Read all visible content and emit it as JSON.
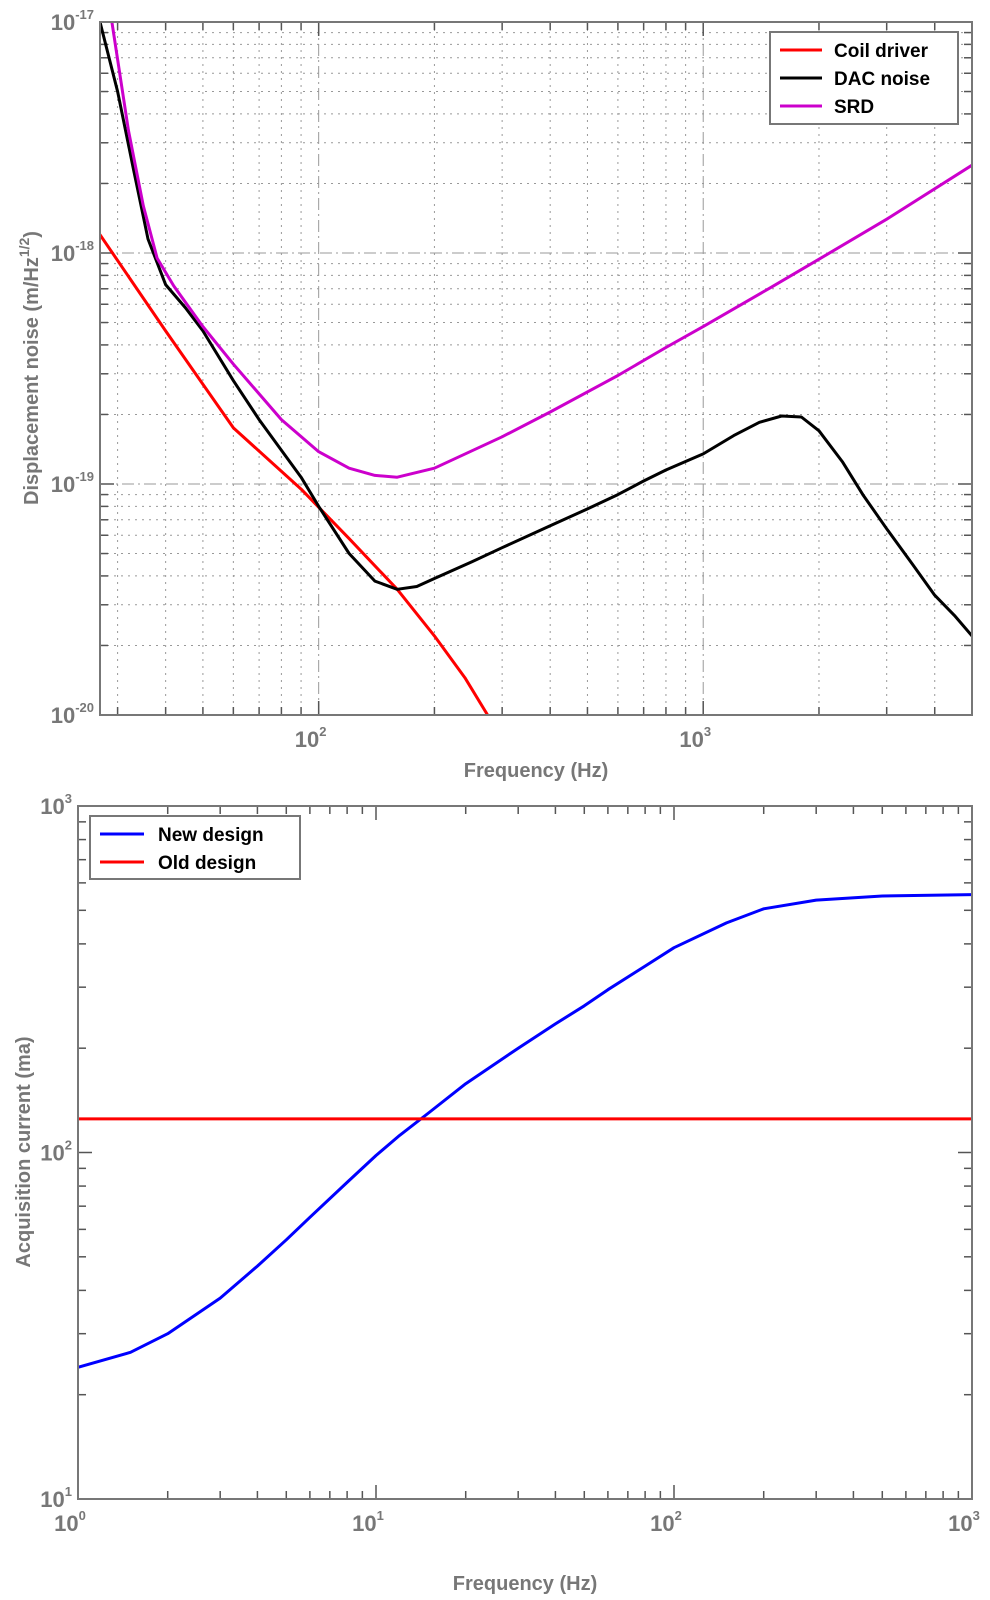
{
  "chart_data": [
    {
      "type": "line",
      "xlabel": "Frequency (Hz)",
      "ylabel": "Displacement noise (m/Hz",
      "ylabel_sup": "1/2",
      "ylabel_tail": ")",
      "xscale": "log",
      "yscale": "log",
      "xlim": [
        27,
        5000
      ],
      "ylim": [
        1e-20,
        1e-17
      ],
      "grid": true,
      "legend_position": "top-right",
      "x_ticks": [
        {
          "base": "10",
          "exp": "2",
          "value": 100
        },
        {
          "base": "10",
          "exp": "3",
          "value": 1000
        }
      ],
      "y_ticks": [
        {
          "base": "10",
          "exp": "-20",
          "value": 1e-20
        },
        {
          "base": "10",
          "exp": "-19",
          "value": 1e-19
        },
        {
          "base": "10",
          "exp": "-18",
          "value": 1e-18
        },
        {
          "base": "10",
          "exp": "-17",
          "value": 1e-17
        }
      ],
      "series": [
        {
          "name": "Coil driver",
          "color": "#ff0000",
          "x": [
            27,
            40,
            60,
            90,
            120,
            160,
            200,
            240,
            275
          ],
          "y": [
            1.2e-18,
            4.6e-19,
            1.75e-19,
            9.5e-20,
            5.8e-20,
            3.5e-20,
            2.2e-20,
            1.45e-20,
            1e-20
          ]
        },
        {
          "name": "DAC noise",
          "color": "#000000",
          "x": [
            27,
            30,
            33,
            36,
            40,
            45,
            50,
            60,
            70,
            80,
            90,
            100,
            120,
            140,
            160,
            180,
            200,
            250,
            300,
            400,
            500,
            600,
            700,
            800,
            1000,
            1200,
            1400,
            1600,
            1800,
            2000,
            2300,
            2600,
            3000,
            3500,
            4000,
            4500,
            5000
          ],
          "y": [
            1e-17,
            5e-18,
            2.3e-18,
            1.15e-18,
            7.3e-19,
            5.8e-19,
            4.6e-19,
            2.8e-19,
            1.9e-19,
            1.4e-19,
            1.07e-19,
            8e-20,
            5e-20,
            3.8e-20,
            3.5e-20,
            3.6e-20,
            3.9e-20,
            4.6e-20,
            5.3e-20,
            6.6e-20,
            7.8e-20,
            9e-20,
            1.03e-19,
            1.15e-19,
            1.35e-19,
            1.62e-19,
            1.85e-19,
            1.97e-19,
            1.95e-19,
            1.7e-19,
            1.25e-19,
            9e-20,
            6.4e-20,
            4.5e-20,
            3.3e-20,
            2.7e-20,
            2.2e-20
          ]
        },
        {
          "name": "SRD",
          "color": "#cc00cc",
          "x": [
            29,
            32,
            35,
            38,
            42,
            50,
            60,
            80,
            100,
            120,
            140,
            160,
            200,
            300,
            400,
            600,
            800,
            1000,
            1500,
            2000,
            3000,
            5000
          ],
          "y": [
            1e-17,
            3.4e-18,
            1.6e-18,
            9.5e-19,
            7.2e-19,
            4.8e-19,
            3.3e-19,
            1.9e-19,
            1.38e-19,
            1.17e-19,
            1.09e-19,
            1.07e-19,
            1.17e-19,
            1.6e-19,
            2.05e-19,
            2.95e-19,
            3.9e-19,
            4.8e-19,
            7.1e-19,
            9.4e-19,
            1.4e-18,
            2.4e-18
          ]
        }
      ]
    },
    {
      "type": "line",
      "xlabel": "Frequency (Hz)",
      "ylabel": "Acquisition current (ma)",
      "xscale": "log",
      "yscale": "log",
      "xlim": [
        1,
        1000
      ],
      "ylim": [
        10,
        1000
      ],
      "grid": false,
      "legend_position": "top-left",
      "x_ticks": [
        {
          "base": "10",
          "exp": "0",
          "value": 1
        },
        {
          "base": "10",
          "exp": "1",
          "value": 10
        },
        {
          "base": "10",
          "exp": "2",
          "value": 100
        },
        {
          "base": "10",
          "exp": "3",
          "value": 1000
        }
      ],
      "y_ticks": [
        {
          "base": "10",
          "exp": "1",
          "value": 10
        },
        {
          "base": "10",
          "exp": "2",
          "value": 100
        },
        {
          "base": "10",
          "exp": "3",
          "value": 1000
        }
      ],
      "series": [
        {
          "name": "New design",
          "color": "#0000ff",
          "x": [
            1,
            1.5,
            2,
            3,
            4,
            5,
            6,
            8,
            10,
            12,
            15,
            20,
            30,
            40,
            50,
            60,
            80,
            100,
            150,
            200,
            300,
            500,
            1000
          ],
          "y": [
            24,
            26.5,
            30,
            38,
            47,
            56,
            65,
            82,
            98,
            112,
            130,
            158,
            200,
            235,
            265,
            295,
            345,
            390,
            460,
            505,
            535,
            550,
            555
          ]
        },
        {
          "name": "Old design",
          "color": "#ff0000",
          "x": [
            1,
            1000
          ],
          "y": [
            125,
            125
          ]
        }
      ]
    }
  ]
}
